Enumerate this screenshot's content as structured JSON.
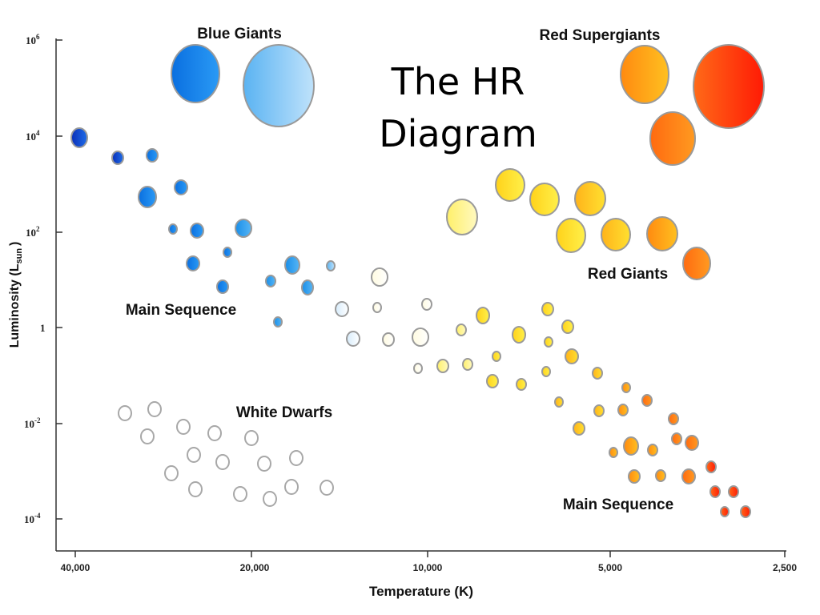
{
  "diagram": {
    "title_line1": "The HR",
    "title_line2": "Diagram",
    "axis": {
      "xlabel": "Temperature (K)",
      "ylabel_main": "Luminosity (L",
      "ylabel_sub": "sun",
      "ylabel_close": ")",
      "x_ticks": [
        "40,000",
        "20,000",
        "10,000",
        "5,000",
        "2,500"
      ],
      "y_ticks": [
        {
          "base": "10",
          "exp": "6"
        },
        {
          "base": "10",
          "exp": "4"
        },
        {
          "base": "10",
          "exp": "2"
        },
        {
          "base": "1",
          "exp": ""
        },
        {
          "base": "10",
          "exp": "-2"
        },
        {
          "base": "10",
          "exp": "-4"
        }
      ],
      "x_scale": "log",
      "y_scale": "log"
    },
    "region_labels": {
      "blue_giants": "Blue Giants",
      "red_supergiants": "Red Supergiants",
      "red_giants": "Red Giants",
      "main_sequence_upper": "Main Sequence",
      "main_sequence_lower": "Main Sequence",
      "white_dwarfs": "White Dwarfs"
    }
  }
}
